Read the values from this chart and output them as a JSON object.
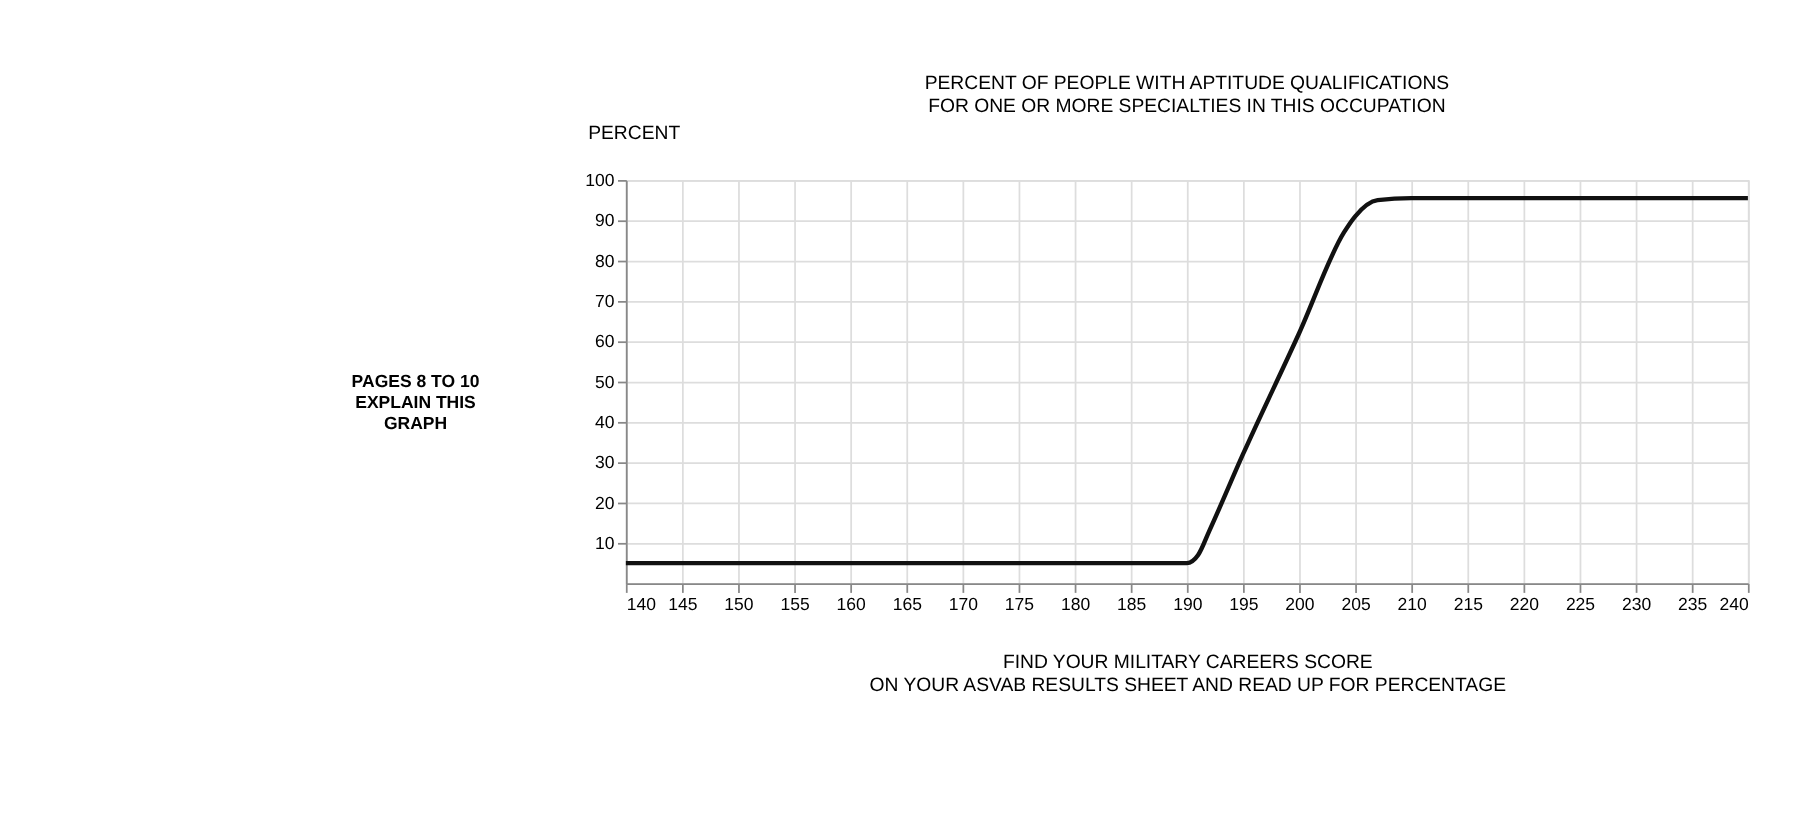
{
  "chart_data": {
    "type": "line",
    "title": "PERCENT OF PEOPLE WITH APTITUDE QUALIFICATIONS\nFOR ONE OR MORE SPECIALTIES IN THIS OCCUPATION",
    "xlabel": "FIND YOUR MILITARY CAREERS SCORE\nON YOUR ASVAB RESULTS SHEET AND READ UP FOR PERCENTAGE",
    "ylabel": "PERCENT",
    "annotations": [
      "PAGES 8 TO 10\nEXPLAIN THIS\nGRAPH"
    ],
    "x": [
      140,
      190,
      191,
      192,
      195,
      200,
      204,
      205,
      207,
      210,
      240
    ],
    "series": [
      {
        "color": "#111111",
        "values": [
          5,
          5,
          7,
          13,
          32,
          62,
          87,
          91,
          95,
          95.5,
          95.5
        ]
      }
    ],
    "xlim": [
      140,
      240
    ],
    "xticks": [
      140,
      145,
      150,
      155,
      160,
      165,
      170,
      175,
      180,
      185,
      190,
      195,
      200,
      205,
      210,
      215,
      220,
      225,
      230,
      235,
      240
    ],
    "ylim": [
      0,
      100
    ],
    "yticks": [
      10,
      20,
      30,
      40,
      50,
      60,
      70,
      80,
      90,
      100
    ],
    "grid": true,
    "marker": "none",
    "line_style": "solid"
  }
}
